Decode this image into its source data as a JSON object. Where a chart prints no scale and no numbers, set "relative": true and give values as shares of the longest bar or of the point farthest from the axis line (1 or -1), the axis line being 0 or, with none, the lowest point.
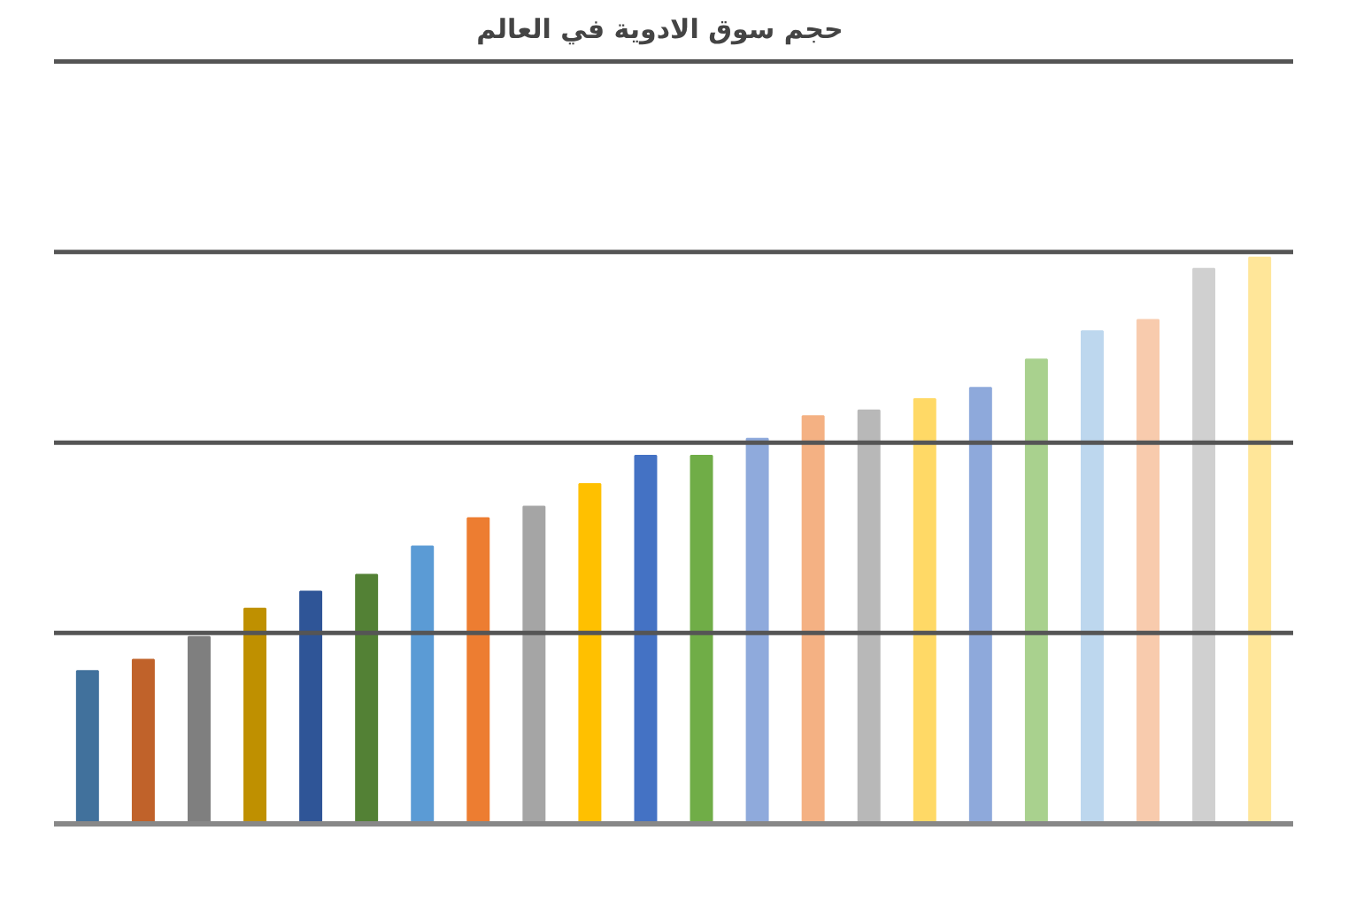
{
  "chart_data": {
    "type": "bar",
    "title": "حجم سوق  الادوية  في  العالم",
    "relative": true,
    "ref_lines": [
      {
        "axis": "y",
        "value": 0.337
      },
      {
        "axis": "y",
        "value": 0.673
      },
      {
        "axis": "y",
        "value": 1.01
      },
      {
        "axis": "y",
        "value": 1.346
      }
    ],
    "categories": [
      null,
      null,
      null,
      null,
      null,
      null,
      null,
      null,
      null,
      null,
      null,
      null,
      null,
      null,
      null,
      null,
      null,
      null,
      null,
      null,
      null,
      null
    ],
    "values": [
      0.27,
      0.29,
      0.33,
      0.38,
      0.41,
      0.44,
      0.49,
      0.54,
      0.56,
      0.6,
      0.65,
      0.65,
      0.68,
      0.72,
      0.73,
      0.75,
      0.77,
      0.82,
      0.87,
      0.89,
      0.98,
      1
    ],
    "colors": [
      "#41719c",
      "#c0622a",
      "#7f7f7f",
      "#bf9000",
      "#2f5597",
      "#538135",
      "#5b9bd5",
      "#ed7d31",
      "#a5a5a5",
      "#ffc000",
      "#4472c4",
      "#70ad47",
      "#8faadc",
      "#f4b183",
      "#b8b8b8",
      "#ffd966",
      "#8ea9db",
      "#a9d18e",
      "#bdd7ee",
      "#f8cbad",
      "#d0d0d0",
      "#ffe699"
    ]
  }
}
